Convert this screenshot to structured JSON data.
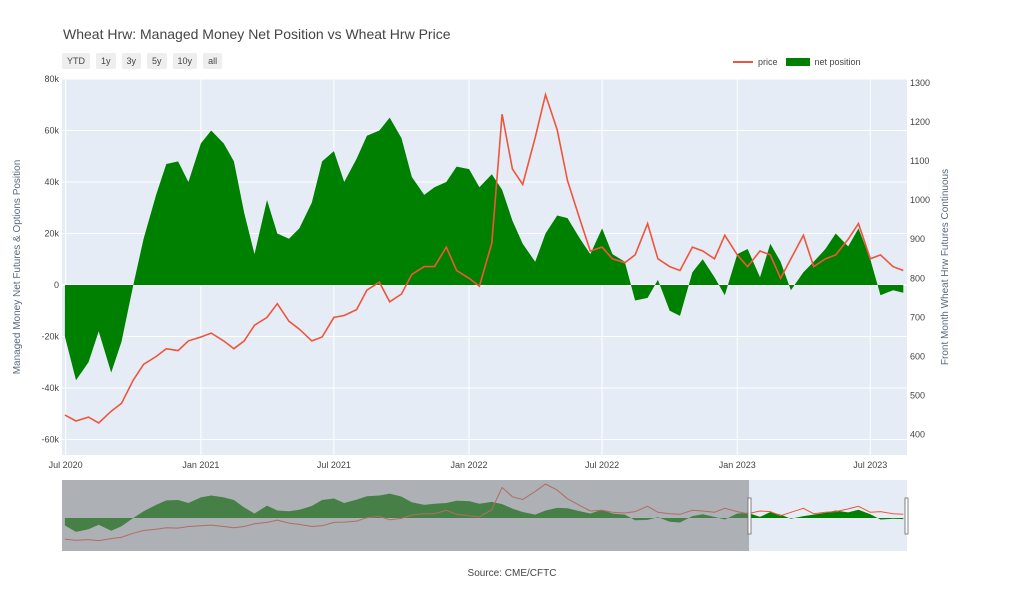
{
  "title": "Wheat Hrw: Managed Money Net Position vs Wheat Hrw Price",
  "range_buttons": [
    "YTD",
    "1y",
    "3y",
    "5y",
    "10y",
    "all"
  ],
  "legend": {
    "price": "price",
    "net": "net position"
  },
  "source": "Source: CME/CFTC",
  "colors": {
    "price": "#ef553b",
    "net": "#008000",
    "plot_bg": "#e5ecf6",
    "grid": "#ffffff",
    "selector_shade": "#808080"
  },
  "chart_data": {
    "type": "area",
    "title": "Wheat Hrw: Managed Money Net Position vs Wheat Hrw Price",
    "xlabel": "",
    "ylabel": "Managed Money Net Futures & Options Position",
    "y2label": "Front Month Wheat Hrw Futures Continuous",
    "xlim": [
      "2020-06-26",
      "2023-08-20"
    ],
    "ylim": [
      -66000,
      80000
    ],
    "y2lim": [
      348,
      1310
    ],
    "x_ticks": [
      "Jul 2020",
      "Jan 2021",
      "Jul 2021",
      "Jan 2022",
      "Jul 2022",
      "Jan 2023",
      "Jul 2023"
    ],
    "y_ticks": [
      "-60k",
      "-40k",
      "-20k",
      "0",
      "20k",
      "40k",
      "60k",
      "80k"
    ],
    "y2_ticks": [
      "400",
      "500",
      "600",
      "700",
      "800",
      "900",
      "1000",
      "1100",
      "1200",
      "1300"
    ],
    "grid": true,
    "legend_position": "top-right",
    "series": [
      {
        "name": "net position",
        "axis": "left",
        "x": [
          "2020-06-30",
          "2020-07-15",
          "2020-08-01",
          "2020-08-15",
          "2020-09-01",
          "2020-09-15",
          "2020-10-01",
          "2020-10-15",
          "2020-11-01",
          "2020-11-15",
          "2020-12-01",
          "2020-12-15",
          "2021-01-01",
          "2021-01-15",
          "2021-02-01",
          "2021-02-15",
          "2021-03-01",
          "2021-03-15",
          "2021-04-01",
          "2021-04-15",
          "2021-05-01",
          "2021-05-15",
          "2021-06-01",
          "2021-06-15",
          "2021-07-01",
          "2021-07-15",
          "2021-08-01",
          "2021-08-15",
          "2021-09-01",
          "2021-09-15",
          "2021-10-01",
          "2021-10-15",
          "2021-11-01",
          "2021-11-15",
          "2021-12-01",
          "2021-12-15",
          "2022-01-01",
          "2022-01-15",
          "2022-02-01",
          "2022-02-15",
          "2022-03-01",
          "2022-03-15",
          "2022-04-01",
          "2022-04-15",
          "2022-05-01",
          "2022-05-15",
          "2022-06-01",
          "2022-06-15",
          "2022-07-01",
          "2022-07-15",
          "2022-08-01",
          "2022-08-15",
          "2022-09-01",
          "2022-09-15",
          "2022-10-01",
          "2022-10-15",
          "2022-11-01",
          "2022-11-15",
          "2022-12-01",
          "2022-12-15",
          "2023-01-01",
          "2023-01-15",
          "2023-02-01",
          "2023-02-15",
          "2023-03-01",
          "2023-03-15",
          "2023-04-01",
          "2023-04-15",
          "2023-05-01",
          "2023-05-15",
          "2023-06-01",
          "2023-06-15",
          "2023-07-01",
          "2023-07-15",
          "2023-08-01",
          "2023-08-15"
        ],
        "values": [
          -20000,
          -37000,
          -30000,
          -18000,
          -34000,
          -22000,
          0,
          18000,
          35000,
          47000,
          48000,
          40000,
          55000,
          60000,
          55000,
          48000,
          28000,
          12000,
          33000,
          20000,
          18000,
          22000,
          32000,
          48000,
          52000,
          40000,
          49000,
          58000,
          60000,
          65000,
          57000,
          42000,
          35000,
          38000,
          40000,
          46000,
          45000,
          38000,
          43000,
          37000,
          25000,
          16000,
          9000,
          20000,
          27000,
          26000,
          18000,
          12000,
          22000,
          12000,
          9000,
          -6000,
          -5000,
          2000,
          -10000,
          -12000,
          5000,
          10000,
          3000,
          -4000,
          12000,
          14000,
          3000,
          16000,
          9000,
          -2000,
          5000,
          9000,
          14000,
          20000,
          15000,
          22000,
          10000,
          -4000,
          -2000,
          -3000
        ]
      },
      {
        "name": "price",
        "axis": "right",
        "x": [
          "2020-06-30",
          "2020-07-15",
          "2020-08-01",
          "2020-08-15",
          "2020-09-01",
          "2020-09-15",
          "2020-10-01",
          "2020-10-15",
          "2020-11-01",
          "2020-11-15",
          "2020-12-01",
          "2020-12-15",
          "2021-01-01",
          "2021-01-15",
          "2021-02-01",
          "2021-02-15",
          "2021-03-01",
          "2021-03-15",
          "2021-04-01",
          "2021-04-15",
          "2021-05-01",
          "2021-05-15",
          "2021-06-01",
          "2021-06-15",
          "2021-07-01",
          "2021-07-15",
          "2021-08-01",
          "2021-08-15",
          "2021-09-01",
          "2021-09-15",
          "2021-10-01",
          "2021-10-15",
          "2021-11-01",
          "2021-11-15",
          "2021-12-01",
          "2021-12-15",
          "2022-01-01",
          "2022-01-15",
          "2022-02-01",
          "2022-02-15",
          "2022-03-01",
          "2022-03-15",
          "2022-04-01",
          "2022-04-15",
          "2022-05-01",
          "2022-05-15",
          "2022-06-01",
          "2022-06-15",
          "2022-07-01",
          "2022-07-15",
          "2022-08-01",
          "2022-08-15",
          "2022-09-01",
          "2022-09-15",
          "2022-10-01",
          "2022-10-15",
          "2022-11-01",
          "2022-11-15",
          "2022-12-01",
          "2022-12-15",
          "2023-01-01",
          "2023-01-15",
          "2023-02-01",
          "2023-02-15",
          "2023-03-01",
          "2023-03-15",
          "2023-04-01",
          "2023-04-15",
          "2023-05-01",
          "2023-05-15",
          "2023-06-01",
          "2023-06-15",
          "2023-07-01",
          "2023-07-15",
          "2023-08-01",
          "2023-08-15"
        ],
        "values": [
          450,
          435,
          445,
          430,
          460,
          480,
          540,
          580,
          600,
          620,
          615,
          640,
          650,
          660,
          640,
          620,
          640,
          680,
          700,
          735,
          690,
          670,
          640,
          650,
          700,
          705,
          720,
          770,
          790,
          740,
          760,
          810,
          830,
          830,
          880,
          820,
          800,
          780,
          890,
          1220,
          1080,
          1040,
          1160,
          1270,
          1180,
          1050,
          950,
          870,
          880,
          850,
          840,
          860,
          940,
          850,
          830,
          820,
          880,
          870,
          850,
          910,
          860,
          830,
          870,
          860,
          800,
          850,
          910,
          830,
          850,
          860,
          900,
          940,
          850,
          860,
          830,
          820
        ]
      }
    ]
  }
}
